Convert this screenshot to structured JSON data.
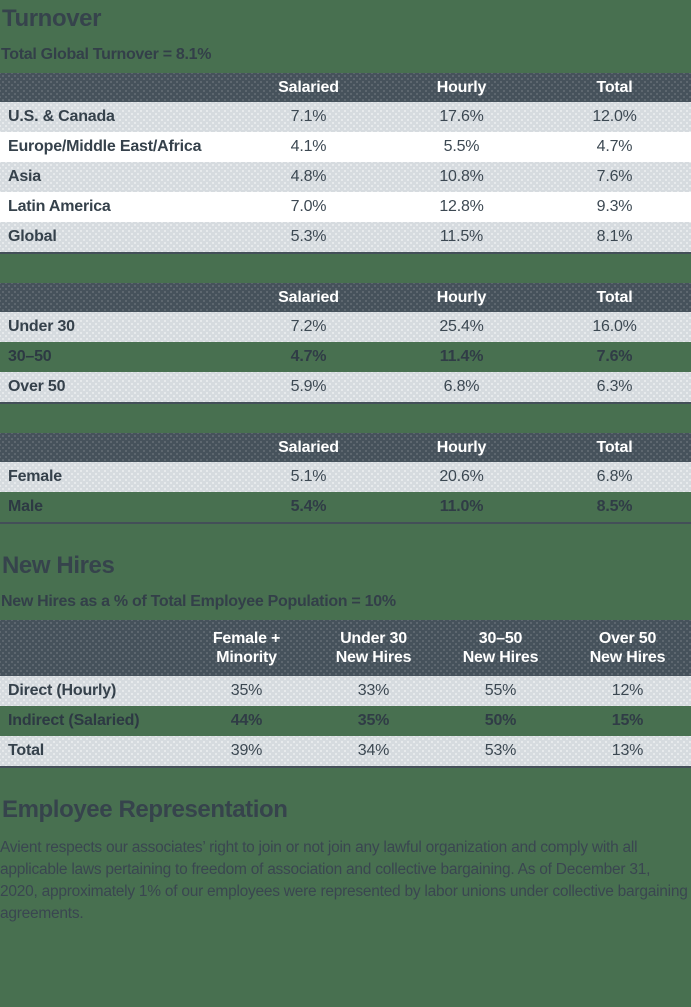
{
  "colors": {
    "page_background": "#487050",
    "table_header": "#46525b",
    "row_gray": "#d6dbdf",
    "row_white": "#ffffff",
    "text_dark": "#36434c",
    "header_text": "#ffffff"
  },
  "turnover": {
    "title": "Turnover",
    "subtitle": "Total Global Turnover = 8.1%",
    "tables": [
      {
        "columns": [
          "Salaried",
          "Hourly",
          "Total"
        ],
        "rows": [
          {
            "label": "U.S. & Canada",
            "values": [
              "7.1%",
              "17.6%",
              "12.0%"
            ]
          },
          {
            "label": "Europe/Middle East/Africa",
            "values": [
              "4.1%",
              "5.5%",
              "4.7%"
            ]
          },
          {
            "label": "Asia",
            "values": [
              "4.8%",
              "10.8%",
              "7.6%"
            ]
          },
          {
            "label": "Latin America",
            "values": [
              "7.0%",
              "12.8%",
              "9.3%"
            ]
          },
          {
            "label": "Global",
            "values": [
              "5.3%",
              "11.5%",
              "8.1%"
            ]
          }
        ]
      },
      {
        "columns": [
          "Salaried",
          "Hourly",
          "Total"
        ],
        "rows": [
          {
            "label": "Under 30",
            "values": [
              "7.2%",
              "25.4%",
              "16.0%"
            ]
          },
          {
            "label": "30–50",
            "values": [
              "4.7%",
              "11.4%",
              "7.6%"
            ]
          },
          {
            "label": "Over 50",
            "values": [
              "5.9%",
              "6.8%",
              "6.3%"
            ]
          }
        ]
      },
      {
        "columns": [
          "Salaried",
          "Hourly",
          "Total"
        ],
        "rows": [
          {
            "label": "Female",
            "values": [
              "5.1%",
              "20.6%",
              "6.8%"
            ]
          },
          {
            "label": "Male",
            "values": [
              "5.4%",
              "11.0%",
              "8.5%"
            ]
          }
        ]
      }
    ]
  },
  "new_hires": {
    "title": "New Hires",
    "subtitle": "New Hires as a % of Total Employee Population = 10%",
    "table": {
      "columns": [
        [
          "Female +",
          "Minority"
        ],
        [
          "Under 30",
          "New Hires"
        ],
        [
          "30–50",
          "New Hires"
        ],
        [
          "Over 50",
          "New Hires"
        ]
      ],
      "rows": [
        {
          "label": "Direct (Hourly)",
          "values": [
            "35%",
            "33%",
            "55%",
            "12%"
          ]
        },
        {
          "label": "Indirect (Salaried)",
          "values": [
            "44%",
            "35%",
            "50%",
            "15%"
          ]
        },
        {
          "label": "Total",
          "values": [
            "39%",
            "34%",
            "53%",
            "13%"
          ]
        }
      ]
    }
  },
  "employee_representation": {
    "title": "Employee Representation",
    "body": "Avient respects our associates’ right to join or not join any lawful organization and comply with all applicable laws pertaining to freedom of association and collective bargaining. As of December 31, 2020, approximately 1% of our employees were represented by labor unions under collective bargaining agreements."
  }
}
